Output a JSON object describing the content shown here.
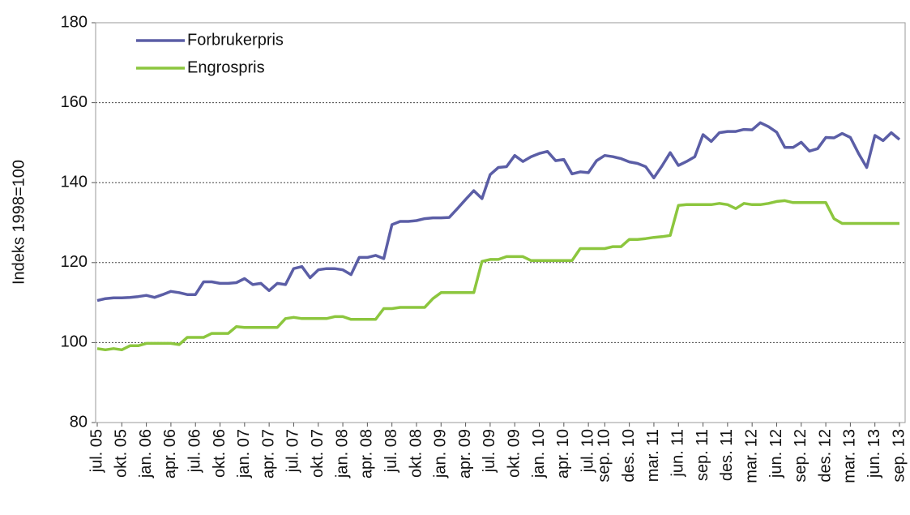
{
  "chart_data": {
    "type": "line",
    "y_label": "Indeks 1998=100",
    "categories": [
      "jul. 05",
      null,
      null,
      "okt. 05",
      null,
      null,
      "jan. 06",
      null,
      null,
      "apr. 06",
      null,
      null,
      "jul. 06",
      null,
      null,
      "okt. 06",
      null,
      null,
      "jan. 07",
      null,
      null,
      "apr. 07",
      null,
      null,
      "jul. 07",
      null,
      null,
      "okt. 07",
      null,
      null,
      "jan. 08",
      null,
      null,
      "apr. 08",
      null,
      null,
      "jul. 08",
      null,
      null,
      "okt. 08",
      null,
      null,
      "jan. 09",
      null,
      null,
      "apr. 09",
      null,
      null,
      "jul. 09",
      null,
      null,
      "okt. 09",
      null,
      null,
      "jan. 10",
      null,
      null,
      "apr. 10",
      null,
      null,
      "jul. 10",
      null,
      "sep. 10",
      null,
      null,
      "des. 10",
      null,
      null,
      "mar. 11",
      null,
      null,
      "jun. 11",
      null,
      null,
      "sep. 11",
      null,
      null,
      "des. 11",
      null,
      null,
      "mar. 12",
      null,
      null,
      "jun. 12",
      null,
      null,
      "sep. 12",
      null,
      null,
      "des. 12",
      null,
      null,
      "mar. 13",
      null,
      null,
      "jun. 13",
      null,
      null,
      "sep. 13"
    ],
    "series": [
      {
        "name": "Forbrukerpris",
        "color": "#5b5ea6",
        "values": [
          110.5,
          111,
          111.2,
          111.2,
          111.3,
          111.5,
          111.8,
          111.3,
          112,
          112.8,
          112.5,
          112,
          112,
          115.2,
          115.2,
          114.8,
          114.8,
          115,
          116,
          114.5,
          114.8,
          113,
          114.8,
          114.5,
          118.5,
          119,
          116.2,
          118.2,
          118.5,
          118.5,
          118.2,
          117,
          121.3,
          121.3,
          121.8,
          121,
          129.5,
          130.3,
          130.3,
          130.5,
          131,
          131.2,
          131.2,
          131.3,
          133.5,
          135.8,
          138,
          136,
          142,
          143.8,
          144,
          146.8,
          145.3,
          146.5,
          147.3,
          147.8,
          145.5,
          145.8,
          142.2,
          142.7,
          142.5,
          145.5,
          146.8,
          146.5,
          146,
          145.2,
          144.8,
          144,
          141.2,
          144.2,
          147.5,
          144.3,
          145.3,
          146.5,
          152,
          150.3,
          152.5,
          152.8,
          152.8,
          153.3,
          153.2,
          155,
          154,
          152.6,
          148.8,
          148.8,
          150.1,
          147.9,
          148.5,
          151.3,
          151.2,
          152.3,
          151.3,
          147.3,
          143.8,
          151.8,
          150.5,
          152.5,
          150.8
        ]
      },
      {
        "name": "Engrospris",
        "color": "#8cc63e",
        "values": [
          98.5,
          98.2,
          98.5,
          98.2,
          99.2,
          99.2,
          99.8,
          99.8,
          99.8,
          99.8,
          99.5,
          101.3,
          101.3,
          101.3,
          102.3,
          102.3,
          102.3,
          104,
          103.8,
          103.8,
          103.8,
          103.8,
          103.8,
          106,
          106.3,
          106,
          106,
          106,
          106,
          106.5,
          106.5,
          105.8,
          105.8,
          105.8,
          105.8,
          108.5,
          108.5,
          108.8,
          108.8,
          108.8,
          108.8,
          111,
          112.5,
          112.5,
          112.5,
          112.5,
          112.5,
          120.3,
          120.8,
          120.8,
          121.5,
          121.5,
          121.5,
          120.5,
          120.5,
          120.5,
          120.5,
          120.5,
          120.5,
          123.5,
          123.5,
          123.5,
          123.5,
          124,
          124,
          125.8,
          125.8,
          126,
          126.3,
          126.5,
          126.8,
          134.3,
          134.5,
          134.5,
          134.5,
          134.5,
          134.8,
          134.5,
          133.5,
          134.8,
          134.5,
          134.5,
          134.8,
          135.3,
          135.5,
          135,
          135,
          135,
          135,
          135,
          131,
          129.8,
          129.8,
          129.8,
          129.8,
          129.8,
          129.8,
          129.8,
          129.8
        ]
      }
    ],
    "ylim": [
      80,
      180
    ],
    "yticks": [
      80,
      100,
      120,
      140,
      160,
      180
    ],
    "grid": true,
    "legend_position": "upper left"
  }
}
